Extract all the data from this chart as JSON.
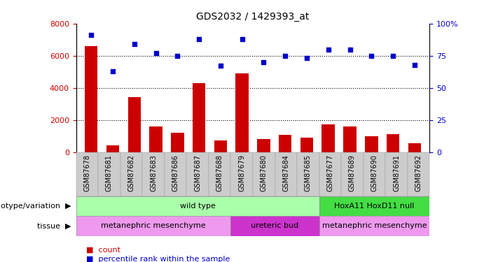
{
  "title": "GDS2032 / 1429393_at",
  "samples": [
    "GSM87678",
    "GSM87681",
    "GSM87682",
    "GSM87683",
    "GSM87686",
    "GSM87687",
    "GSM87688",
    "GSM87679",
    "GSM87680",
    "GSM87684",
    "GSM87685",
    "GSM87677",
    "GSM87689",
    "GSM87690",
    "GSM87691",
    "GSM87692"
  ],
  "counts": [
    6600,
    400,
    3400,
    1600,
    1200,
    4300,
    700,
    4900,
    800,
    1050,
    900,
    1700,
    1600,
    1000,
    1100,
    550
  ],
  "percentiles": [
    91,
    63,
    84,
    77,
    75,
    88,
    67,
    88,
    70,
    75,
    73,
    80,
    80,
    75,
    75,
    68
  ],
  "ylim_left": [
    0,
    8000
  ],
  "ylim_right": [
    0,
    100
  ],
  "yticks_left": [
    0,
    2000,
    4000,
    6000,
    8000
  ],
  "yticks_right": [
    0,
    25,
    50,
    75,
    100
  ],
  "ytick_labels_right": [
    "0",
    "25",
    "50",
    "75",
    "100%"
  ],
  "bar_color": "#cc0000",
  "dot_color": "#0000cc",
  "background_color": "#ffffff",
  "genotype_groups": [
    {
      "label": "wild type",
      "start": 0,
      "end": 11,
      "color": "#aaffaa"
    },
    {
      "label": "HoxA11 HoxD11 null",
      "start": 11,
      "end": 16,
      "color": "#44dd44"
    }
  ],
  "tissue_groups": [
    {
      "label": "metanephric mesenchyme",
      "start": 0,
      "end": 7,
      "color": "#ee99ee"
    },
    {
      "label": "ureteric bud",
      "start": 7,
      "end": 11,
      "color": "#cc33cc"
    },
    {
      "label": "metanephric mesenchyme",
      "start": 11,
      "end": 16,
      "color": "#ee99ee"
    }
  ],
  "legend_items": [
    "count",
    "percentile rank within the sample"
  ]
}
